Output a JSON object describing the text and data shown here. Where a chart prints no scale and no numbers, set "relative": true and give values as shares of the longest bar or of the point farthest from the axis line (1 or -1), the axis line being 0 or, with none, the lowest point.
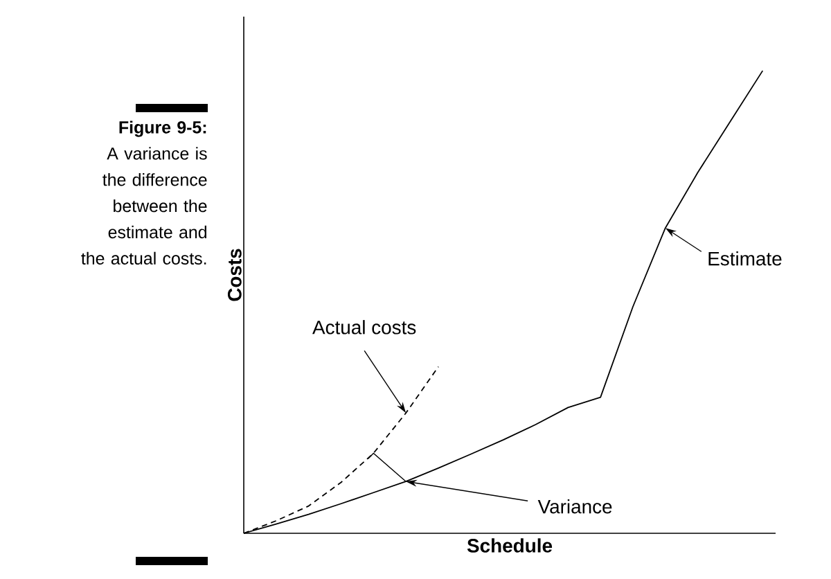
{
  "chart_data": {
    "type": "line",
    "relative": true,
    "xlabel": "Schedule",
    "ylabel": "Costs",
    "categories": [
      null,
      null,
      null,
      null,
      null,
      null,
      null,
      null,
      null,
      null,
      null,
      null,
      null,
      null,
      null,
      null,
      null
    ],
    "series": [
      {
        "name": "Estimate",
        "color": "#000000",
        "line_style": "solid",
        "values": [
          0,
          0.02,
          0.041,
          0.064,
          0.088,
          0.112,
          0.141,
          0.171,
          0.202,
          0.235,
          0.272,
          0.294,
          0.49,
          0.66,
          0.78,
          0.89,
          1.0
        ]
      },
      {
        "name": "Actual costs",
        "color": "#000000",
        "line_style": "dashed",
        "values": [
          0,
          0.027,
          0.059,
          0.11,
          0.173,
          0.26,
          0.36,
          null,
          null,
          null,
          null,
          null,
          null,
          null,
          null,
          null,
          null
        ]
      }
    ],
    "annotations": [
      "Variance",
      "**Figure 9-5:** A variance is the difference between the estimate and the actual costs."
    ]
  }
}
